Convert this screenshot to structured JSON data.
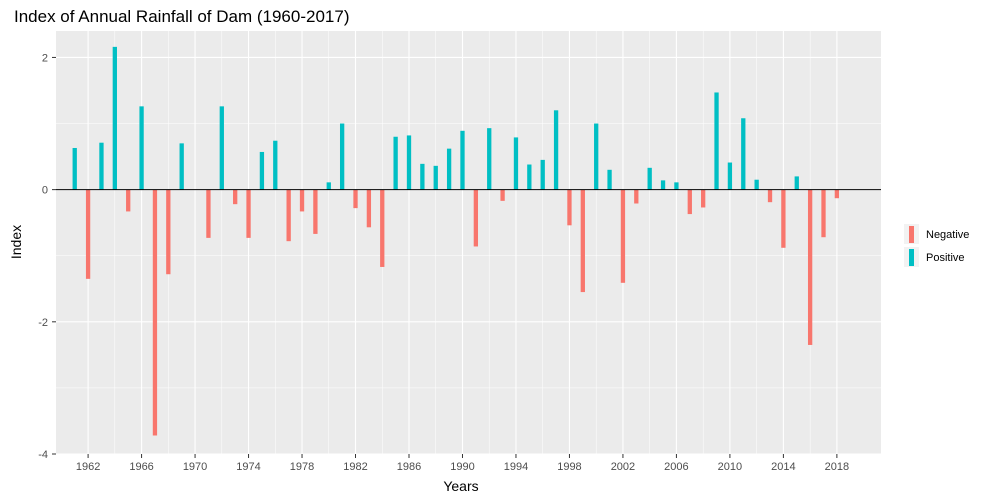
{
  "chart_data": {
    "type": "bar",
    "title": "Index of Annual Rainfall of Dam (1960-2017)",
    "xlabel": "Years",
    "ylabel": "Index",
    "xlim": [
      1959.6,
      2021.3
    ],
    "ylim": [
      -4,
      2.4
    ],
    "x_ticks": [
      1962,
      1966,
      1970,
      1974,
      1978,
      1982,
      1986,
      1990,
      1994,
      1998,
      2002,
      2006,
      2010,
      2014,
      2018
    ],
    "y_ticks": [
      -4,
      -2,
      0,
      2
    ],
    "grid": true,
    "zero_line": true,
    "legend": {
      "position": "right",
      "entries": [
        {
          "name": "Negative",
          "color": "#F8766D"
        },
        {
          "name": "Positive",
          "color": "#00BFC4"
        }
      ]
    },
    "colors": {
      "Negative": "#F8766D",
      "Positive": "#00BFC4",
      "panel": "#EBEBEB",
      "grid": "#FFFFFF"
    },
    "x": [
      1961,
      1962,
      1963,
      1964,
      1965,
      1966,
      1967,
      1968,
      1969,
      1970,
      1971,
      1972,
      1973,
      1974,
      1975,
      1976,
      1977,
      1978,
      1979,
      1980,
      1981,
      1982,
      1983,
      1984,
      1985,
      1986,
      1987,
      1988,
      1989,
      1990,
      1991,
      1992,
      1993,
      1994,
      1995,
      1996,
      1997,
      1998,
      1999,
      2000,
      2001,
      2002,
      2003,
      2004,
      2005,
      2006,
      2007,
      2008,
      2009,
      2010,
      2011,
      2012,
      2013,
      2014,
      2015,
      2016,
      2017,
      2018
    ],
    "values": [
      0.63,
      -1.35,
      0.71,
      2.16,
      -0.33,
      1.26,
      -3.72,
      -1.28,
      0.7,
      0.0,
      -0.73,
      1.26,
      -0.22,
      -0.73,
      0.57,
      0.74,
      -0.78,
      -0.33,
      -0.67,
      0.11,
      1.0,
      -0.28,
      -0.57,
      -1.17,
      0.8,
      0.82,
      0.39,
      0.36,
      0.62,
      0.89,
      -0.86,
      0.93,
      -0.17,
      0.79,
      0.38,
      0.45,
      1.2,
      -0.54,
      -1.55,
      1.0,
      0.3,
      -1.41,
      -0.21,
      0.33,
      0.14,
      0.11,
      -0.37,
      -0.27,
      1.47,
      0.41,
      1.08,
      0.15,
      -0.19,
      -0.88,
      0.2,
      -2.35,
      -0.72,
      -0.13
    ]
  }
}
